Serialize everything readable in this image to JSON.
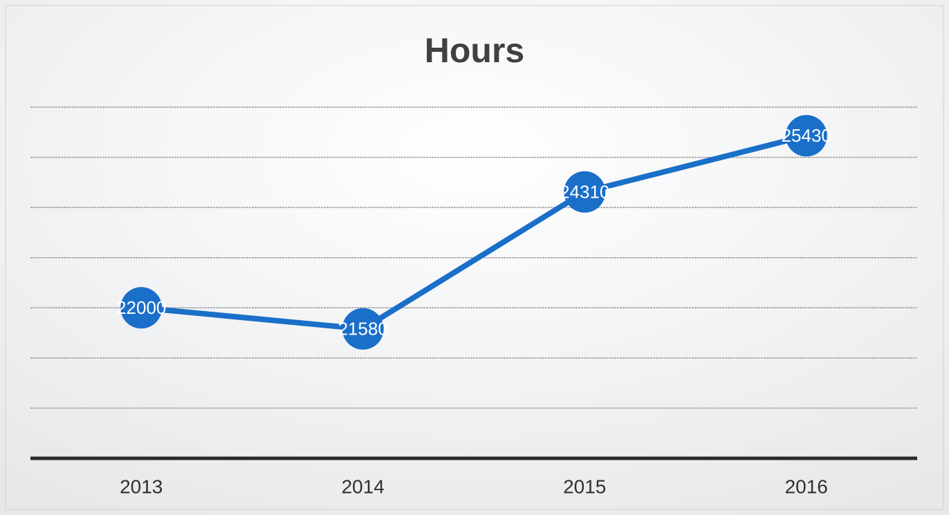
{
  "chart_data": {
    "type": "line",
    "title": "Hours",
    "categories": [
      "2013",
      "2014",
      "2015",
      "2016"
    ],
    "series": [
      {
        "name": "Hours",
        "color": "#1a6fc9",
        "values": [
          22000,
          21580,
          24310,
          25430
        ]
      }
    ],
    "ylim": [
      19000,
      26000
    ],
    "yticks": [
      19000,
      20000,
      21000,
      22000,
      23000,
      24000,
      25000,
      26000
    ],
    "grid": true
  }
}
